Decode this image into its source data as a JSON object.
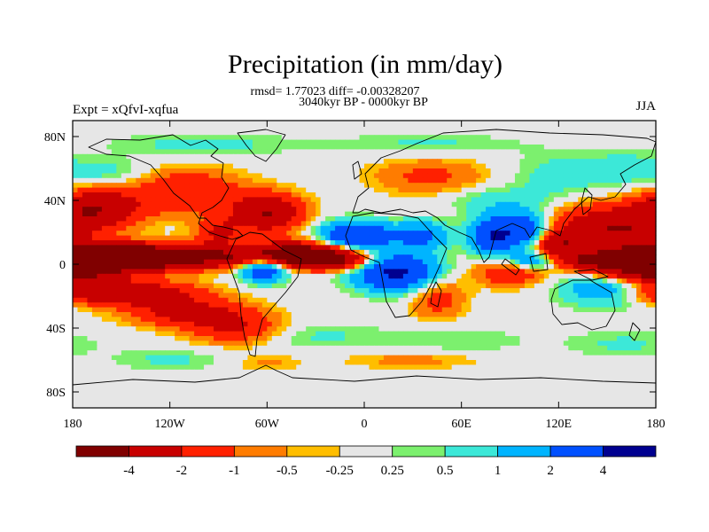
{
  "chart_data": {
    "type": "heatmap",
    "title": "Precipitation (in mm/day)",
    "stats_line": "rmsd= 1.77023 diff= -0.00328207",
    "period_line": "3040kyr BP - 0000kyr BP",
    "left_label": "Expt = xQfvI-xqfua",
    "right_label": "JJA",
    "x_ticks": [
      "180",
      "120W",
      "60W",
      "0",
      "60E",
      "120E",
      "180"
    ],
    "x_tick_values": [
      -180,
      -120,
      -60,
      0,
      60,
      120,
      180
    ],
    "y_ticks": [
      "80N",
      "40N",
      "0",
      "40S",
      "80S"
    ],
    "y_tick_values": [
      80,
      40,
      0,
      -40,
      -80
    ],
    "xlim": [
      -180,
      180
    ],
    "ylim": [
      -90,
      90
    ],
    "colorbar": {
      "labels": [
        "-4",
        "-2",
        "-1",
        "-0.5",
        "-0.25",
        "0.25",
        "0.5",
        "1",
        "2",
        "4"
      ],
      "levels": [
        -4,
        -2,
        -1,
        -0.5,
        -0.25,
        0.25,
        0.5,
        1,
        2,
        4
      ],
      "colors": [
        "#800000",
        "#c80000",
        "#ff2000",
        "#ff7c00",
        "#ffbe00",
        "#e6e6e6",
        "#7cf06e",
        "#3ce8d8",
        "#00b4ff",
        "#0050ff",
        "#000090"
      ]
    },
    "field_regions": [
      {
        "lon": -165,
        "lat": 3,
        "sx": 30,
        "sy": 6,
        "a": -6.0
      },
      {
        "lon": -120,
        "lat": 5,
        "sx": 45,
        "sy": 5,
        "a": -5.0
      },
      {
        "lon": -40,
        "lat": 6,
        "sx": 20,
        "sy": 5,
        "a": -6.0
      },
      {
        "lon": -15,
        "lat": 2,
        "sx": 15,
        "sy": 4,
        "a": -3.0
      },
      {
        "lon": -150,
        "lat": -18,
        "sx": 30,
        "sy": 5,
        "a": -4.0
      },
      {
        "lon": -110,
        "lat": -30,
        "sx": 25,
        "sy": 6,
        "a": -2.5
      },
      {
        "lon": -80,
        "lat": -40,
        "sx": 20,
        "sy": 7,
        "a": -2.0
      },
      {
        "lon": -165,
        "lat": 35,
        "sx": 18,
        "sy": 8,
        "a": -3.5
      },
      {
        "lon": -110,
        "lat": 45,
        "sx": 25,
        "sy": 10,
        "a": -2.0
      },
      {
        "lon": -60,
        "lat": 32,
        "sx": 15,
        "sy": 8,
        "a": -4.0
      },
      {
        "lon": -90,
        "lat": 20,
        "sx": 10,
        "sy": 6,
        "a": -2.0
      },
      {
        "lon": 45,
        "lat": -20,
        "sx": 12,
        "sy": 10,
        "a": -1.5
      },
      {
        "lon": 20,
        "lat": -5,
        "sx": 18,
        "sy": 8,
        "a": 4.5
      },
      {
        "lon": -5,
        "lat": 18,
        "sx": 15,
        "sy": 6,
        "a": 4.0
      },
      {
        "lon": 35,
        "lat": 18,
        "sx": 12,
        "sy": 6,
        "a": 2.5
      },
      {
        "lon": -62,
        "lat": -2,
        "sx": 10,
        "sy": 6,
        "a": 4.0
      },
      {
        "lon": 80,
        "lat": 18,
        "sx": 10,
        "sy": 8,
        "a": 4.0
      },
      {
        "lon": 100,
        "lat": 22,
        "sx": 10,
        "sy": 8,
        "a": 3.0
      },
      {
        "lon": 120,
        "lat": 12,
        "sx": 10,
        "sy": 6,
        "a": -3.0
      },
      {
        "lon": 155,
        "lat": 22,
        "sx": 25,
        "sy": 10,
        "a": -4.0
      },
      {
        "lon": 105,
        "lat": 2,
        "sx": 12,
        "sy": 4,
        "a": 2.5
      },
      {
        "lon": 140,
        "lat": 2,
        "sx": 15,
        "sy": 4,
        "a": -3.0
      },
      {
        "lon": 175,
        "lat": -5,
        "sx": 20,
        "sy": 5,
        "a": -4.0
      },
      {
        "lon": 90,
        "lat": -5,
        "sx": 15,
        "sy": 6,
        "a": -2.0
      },
      {
        "lon": 150,
        "lat": -15,
        "sx": 20,
        "sy": 8,
        "a": 2.0
      },
      {
        "lon": 80,
        "lat": 40,
        "sx": 20,
        "sy": 6,
        "a": 0.8
      },
      {
        "lon": 40,
        "lat": 55,
        "sx": 25,
        "sy": 8,
        "a": -1.2
      },
      {
        "lon": 120,
        "lat": 55,
        "sx": 20,
        "sy": 10,
        "a": 0.8
      },
      {
        "lon": 160,
        "lat": 60,
        "sx": 15,
        "sy": 8,
        "a": 0.7
      },
      {
        "lon": -160,
        "lat": 58,
        "sx": 20,
        "sy": 6,
        "a": 0.8
      },
      {
        "lon": -100,
        "lat": 75,
        "sx": 40,
        "sy": 5,
        "a": 0.7
      },
      {
        "lon": 40,
        "lat": 75,
        "sx": 40,
        "sy": 5,
        "a": 0.6
      },
      {
        "lon": -30,
        "lat": -45,
        "sx": 30,
        "sy": 6,
        "a": 0.6
      },
      {
        "lon": 60,
        "lat": -48,
        "sx": 30,
        "sy": 6,
        "a": 0.5
      },
      {
        "lon": 160,
        "lat": -50,
        "sx": 25,
        "sy": 6,
        "a": 0.6
      },
      {
        "lon": -120,
        "lat": -60,
        "sx": 25,
        "sy": 5,
        "a": 0.6
      },
      {
        "lon": 30,
        "lat": -60,
        "sx": 30,
        "sy": 4,
        "a": -0.7
      },
      {
        "lon": -60,
        "lat": -62,
        "sx": 15,
        "sy": 4,
        "a": -0.6
      }
    ]
  }
}
